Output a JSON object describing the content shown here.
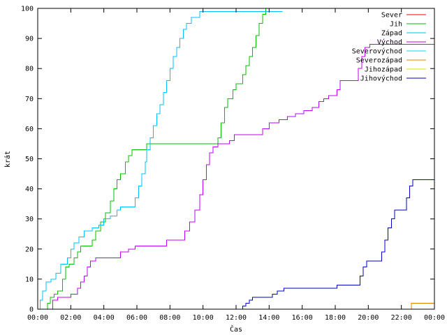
{
  "chart_data": {
    "type": "line",
    "xlabel": "Čas",
    "ylabel": "krát",
    "xlim": [
      0,
      24
    ],
    "ylim": [
      0,
      100
    ],
    "x_ticks": [
      0,
      2,
      4,
      6,
      8,
      10,
      12,
      14,
      16,
      18,
      20,
      22,
      24
    ],
    "x_tick_labels": [
      "00:00",
      "02:00",
      "04:00",
      "06:00",
      "08:00",
      "10:00",
      "12:00",
      "14:00",
      "16:00",
      "18:00",
      "20:00",
      "22:00",
      "00:00"
    ],
    "y_ticks": [
      0,
      10,
      20,
      30,
      40,
      50,
      60,
      70,
      80,
      90,
      100
    ],
    "y_tick_labels": [
      "0",
      "10",
      "20",
      "30",
      "40",
      "50",
      "60",
      "70",
      "80",
      "90",
      "100"
    ],
    "legend_position": "top-right",
    "series": [
      {
        "name": "Sever",
        "color": "#ff0000",
        "step": true,
        "points": []
      },
      {
        "name": "Jih",
        "color": "#00c000",
        "step": true,
        "points": [
          [
            0.5,
            0
          ],
          [
            0.6,
            2
          ],
          [
            0.75,
            4
          ],
          [
            1.0,
            5
          ],
          [
            1.2,
            6
          ],
          [
            1.5,
            10
          ],
          [
            1.7,
            14
          ],
          [
            1.9,
            15
          ],
          [
            2.2,
            17
          ],
          [
            2.4,
            19
          ],
          [
            2.6,
            21
          ],
          [
            3.0,
            21
          ],
          [
            3.3,
            23
          ],
          [
            3.5,
            26
          ],
          [
            3.8,
            29
          ],
          [
            4.1,
            32
          ],
          [
            4.4,
            36
          ],
          [
            4.6,
            40
          ],
          [
            4.8,
            43
          ],
          [
            5.0,
            45
          ],
          [
            5.3,
            49
          ],
          [
            5.5,
            51
          ],
          [
            5.7,
            53
          ],
          [
            6.3,
            53
          ],
          [
            6.6,
            55
          ],
          [
            10.7,
            55
          ],
          [
            10.9,
            57
          ],
          [
            11.1,
            62
          ],
          [
            11.3,
            67
          ],
          [
            11.5,
            70
          ],
          [
            11.8,
            73
          ],
          [
            12.0,
            75
          ],
          [
            12.4,
            78
          ],
          [
            12.6,
            81
          ],
          [
            12.8,
            84
          ],
          [
            13.0,
            87
          ],
          [
            13.2,
            91
          ],
          [
            13.4,
            95
          ],
          [
            13.6,
            98
          ],
          [
            13.8,
            100
          ],
          [
            14.8,
            100
          ]
        ]
      },
      {
        "name": "Západ",
        "color": "#00c0ff",
        "step": true,
        "points": [
          [
            0,
            0
          ],
          [
            0.15,
            3
          ],
          [
            0.3,
            6
          ],
          [
            0.5,
            9
          ],
          [
            0.8,
            10
          ],
          [
            1.1,
            12
          ],
          [
            1.4,
            15
          ],
          [
            1.8,
            17
          ],
          [
            2.0,
            20
          ],
          [
            2.2,
            22
          ],
          [
            2.5,
            24
          ],
          [
            2.8,
            26
          ],
          [
            3.3,
            27
          ],
          [
            3.7,
            28
          ],
          [
            4.0,
            30
          ],
          [
            4.4,
            31
          ],
          [
            4.8,
            33
          ],
          [
            5.0,
            34
          ],
          [
            5.7,
            34
          ],
          [
            5.9,
            37
          ],
          [
            6.1,
            41
          ],
          [
            6.3,
            45
          ],
          [
            6.5,
            49
          ],
          [
            6.6,
            53
          ],
          [
            6.8,
            57
          ],
          [
            7.0,
            61
          ],
          [
            7.2,
            65
          ],
          [
            7.4,
            68
          ],
          [
            7.6,
            72
          ],
          [
            7.8,
            76
          ],
          [
            8.0,
            80
          ],
          [
            8.2,
            84
          ],
          [
            8.4,
            87
          ],
          [
            8.6,
            90
          ],
          [
            8.8,
            93
          ],
          [
            9.0,
            95
          ],
          [
            9.3,
            97
          ],
          [
            9.8,
            99
          ],
          [
            14.8,
            99
          ]
        ]
      },
      {
        "name": "Východ",
        "color": "#c000ff",
        "step": true,
        "points": [
          [
            0.8,
            0
          ],
          [
            0.9,
            3
          ],
          [
            1.2,
            4
          ],
          [
            2.0,
            5
          ],
          [
            2.4,
            7
          ],
          [
            2.6,
            9
          ],
          [
            2.8,
            11
          ],
          [
            3.0,
            14
          ],
          [
            3.2,
            16
          ],
          [
            3.5,
            17
          ],
          [
            4.5,
            17
          ],
          [
            5.0,
            19
          ],
          [
            5.5,
            20
          ],
          [
            5.9,
            21
          ],
          [
            7.5,
            21
          ],
          [
            7.8,
            23
          ],
          [
            8.6,
            23
          ],
          [
            8.9,
            26
          ],
          [
            9.2,
            29
          ],
          [
            9.5,
            33
          ],
          [
            9.8,
            38
          ],
          [
            10.0,
            43
          ],
          [
            10.2,
            48
          ],
          [
            10.4,
            52
          ],
          [
            10.6,
            54
          ],
          [
            10.9,
            55
          ],
          [
            11.6,
            56
          ],
          [
            11.9,
            58
          ],
          [
            13.3,
            58
          ],
          [
            13.6,
            60
          ],
          [
            14.0,
            62
          ],
          [
            14.6,
            63
          ],
          [
            15.1,
            64
          ],
          [
            15.6,
            65
          ],
          [
            16.1,
            66
          ],
          [
            16.6,
            67
          ],
          [
            17.0,
            69
          ],
          [
            17.3,
            70
          ],
          [
            17.6,
            71
          ],
          [
            18.1,
            73
          ],
          [
            18.3,
            76
          ],
          [
            19.2,
            76
          ],
          [
            19.4,
            80
          ],
          [
            19.6,
            84
          ],
          [
            19.8,
            87
          ],
          [
            20.1,
            88
          ],
          [
            24.0,
            88
          ]
        ]
      },
      {
        "name": "Severovýchod",
        "color": "#00e0e0",
        "step": true,
        "points": []
      },
      {
        "name": "Severozápad",
        "color": "#e08000",
        "step": true,
        "points": [
          [
            22.5,
            0
          ],
          [
            22.6,
            2
          ],
          [
            24.0,
            2
          ]
        ]
      },
      {
        "name": "Jihozápad",
        "color": "#e0e000",
        "step": true,
        "points": []
      },
      {
        "name": "Jihovýchod",
        "color": "#0000c0",
        "step": true,
        "points": [
          [
            12.3,
            0
          ],
          [
            12.4,
            1
          ],
          [
            12.6,
            2
          ],
          [
            12.8,
            3
          ],
          [
            13.0,
            4
          ],
          [
            14.2,
            5
          ],
          [
            14.5,
            6
          ],
          [
            14.9,
            7
          ],
          [
            17.8,
            7
          ],
          [
            18.1,
            8
          ],
          [
            19.4,
            8
          ],
          [
            19.5,
            11
          ],
          [
            19.7,
            14
          ],
          [
            19.9,
            16
          ],
          [
            20.6,
            16
          ],
          [
            20.8,
            19
          ],
          [
            21.0,
            23
          ],
          [
            21.2,
            27
          ],
          [
            21.4,
            30
          ],
          [
            21.6,
            33
          ],
          [
            22.1,
            33
          ],
          [
            22.3,
            37
          ],
          [
            22.5,
            41
          ],
          [
            22.7,
            43
          ],
          [
            24.0,
            43
          ]
        ]
      }
    ]
  }
}
